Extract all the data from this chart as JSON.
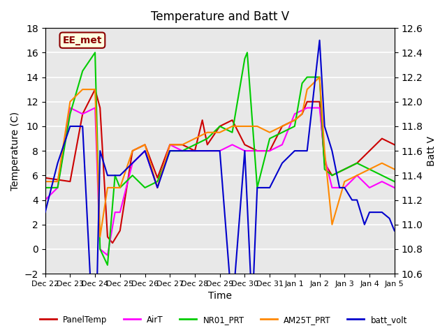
{
  "title": "Temperature and Batt V",
  "xlabel": "Time",
  "ylabel_left": "Temperature (C)",
  "ylabel_right": "Batt V",
  "watermark": "EE_met",
  "ylim_left": [
    -2,
    18
  ],
  "ylim_right": [
    10.6,
    12.6
  ],
  "yticks_left": [
    -2,
    0,
    2,
    4,
    6,
    8,
    10,
    12,
    14,
    16,
    18
  ],
  "yticks_right": [
    10.6,
    10.8,
    11.0,
    11.2,
    11.4,
    11.6,
    11.8,
    12.0,
    12.2,
    12.4,
    12.6
  ],
  "xtick_labels": [
    "Dec 22",
    "Dec 23",
    "Dec 24",
    "Dec 25",
    "Dec 26",
    "Dec 27",
    "Dec 28",
    "Dec 29",
    "Dec 30",
    "Dec 31",
    "Jan 1",
    "Jan 2",
    "Jan 3",
    "Jan 4",
    "Jan 5"
  ],
  "background_color": "#e8e8e8",
  "grid_color": "white",
  "series": {
    "PanelTemp": {
      "color": "#cc0000",
      "lw": 1.5,
      "x": [
        0,
        1,
        1.5,
        2,
        2.2,
        2.5,
        2.7,
        3,
        3.5,
        4,
        4.5,
        5,
        5.5,
        6,
        6.3,
        6.5,
        7,
        7.5,
        8,
        8.5,
        9,
        9.5,
        10,
        10.3,
        10.5,
        11,
        11.2,
        11.5,
        12,
        12.5,
        13,
        13.5,
        14
      ],
      "y": [
        5.8,
        5.5,
        11,
        13,
        11.5,
        1,
        0.5,
        1.5,
        8,
        8.5,
        5.8,
        8.5,
        8.5,
        8,
        10.5,
        8.5,
        10,
        10.5,
        8.5,
        8,
        8,
        10,
        10.5,
        11,
        12,
        12,
        7,
        6,
        6.5,
        7,
        8,
        9,
        8.5
      ]
    },
    "AirT": {
      "color": "#ff00ff",
      "lw": 1.5,
      "x": [
        0,
        0.5,
        1,
        1.5,
        2,
        2.2,
        2.5,
        2.8,
        3,
        3.5,
        4,
        4.5,
        5,
        5.5,
        6,
        6.5,
        7,
        7.5,
        8,
        8.5,
        9,
        9.5,
        10,
        10.5,
        11,
        11.2,
        11.5,
        12,
        12.5,
        13,
        13.5,
        14
      ],
      "y": [
        4,
        5,
        11.5,
        11,
        11.5,
        0,
        -0.5,
        3,
        3,
        7,
        8,
        5,
        8.5,
        8,
        8,
        8,
        8,
        8.5,
        8,
        8,
        8,
        8.5,
        11,
        11.5,
        11.5,
        7.5,
        5,
        5,
        6,
        5,
        5.5,
        5
      ]
    },
    "NR01_PRT": {
      "color": "#00cc00",
      "lw": 1.5,
      "x": [
        0,
        0.5,
        1,
        1.5,
        2,
        2.2,
        2.5,
        2.8,
        3,
        3.5,
        4,
        4.5,
        5,
        5.5,
        6,
        6.5,
        7,
        7.5,
        8,
        8.1,
        8.5,
        9,
        9.5,
        10,
        10.3,
        10.5,
        11,
        11.2,
        11.5,
        12,
        12.5,
        13,
        13.5,
        14
      ],
      "y": [
        5,
        5,
        11,
        14.5,
        16,
        0,
        -1.3,
        6,
        5,
        6,
        5,
        5.5,
        8,
        8,
        8.5,
        9,
        10,
        9.5,
        15.5,
        16,
        5,
        9,
        9.5,
        10,
        13.5,
        14,
        14,
        6.5,
        6,
        6.5,
        7,
        6.5,
        6,
        5.5
      ]
    },
    "AM25T_PRT": {
      "color": "#ff8800",
      "lw": 1.5,
      "x": [
        0,
        0.5,
        1,
        1.5,
        2,
        2.2,
        2.5,
        2.8,
        3,
        3.5,
        4,
        4.5,
        5,
        5.5,
        6,
        6.5,
        7,
        7.5,
        8,
        8.5,
        9,
        9.5,
        10,
        10.3,
        10.5,
        11,
        11.2,
        11.5,
        12,
        12.5,
        13,
        13.5,
        14
      ],
      "y": [
        5.5,
        5.5,
        12,
        13,
        13,
        1,
        5,
        5,
        5,
        8,
        8.5,
        5,
        8.5,
        8.5,
        9,
        9.5,
        9.5,
        10,
        10,
        10,
        9.5,
        10,
        10.5,
        11,
        13,
        14,
        8,
        2,
        5.5,
        6,
        6.5,
        7,
        6.5
      ]
    },
    "batt_volt": {
      "color": "#0000cc",
      "lw": 1.5,
      "x_norm": [
        0,
        0.5,
        1,
        1.5,
        2,
        2.2,
        2.5,
        2.8,
        3,
        3.5,
        4,
        4.5,
        5,
        5.5,
        6,
        6.5,
        7,
        7.5,
        8,
        8.3,
        8.5,
        9,
        9.5,
        10,
        10.5,
        11,
        11.2,
        11.5,
        11.8,
        12,
        12.3,
        12.5,
        12.8,
        13,
        13.3,
        13.5,
        13.8,
        14
      ],
      "y_volt": [
        11.1,
        11.5,
        11.8,
        11.8,
        9.8,
        11.6,
        11.4,
        11.4,
        11.4,
        11.5,
        11.6,
        11.3,
        11.6,
        11.6,
        11.6,
        11.6,
        11.6,
        10.3,
        11.6,
        10.3,
        11.3,
        11.3,
        11.5,
        11.6,
        11.6,
        12.5,
        11.8,
        11.6,
        11.3,
        11.3,
        11.2,
        11.2,
        11.0,
        11.1,
        11.1,
        11.1,
        11.05,
        10.95
      ]
    }
  },
  "legend": [
    {
      "label": "PanelTemp",
      "color": "#cc0000"
    },
    {
      "label": "AirT",
      "color": "#ff00ff"
    },
    {
      "label": "NR01_PRT",
      "color": "#00cc00"
    },
    {
      "label": "AM25T_PRT",
      "color": "#ff8800"
    },
    {
      "label": "batt_volt",
      "color": "#0000cc"
    }
  ]
}
